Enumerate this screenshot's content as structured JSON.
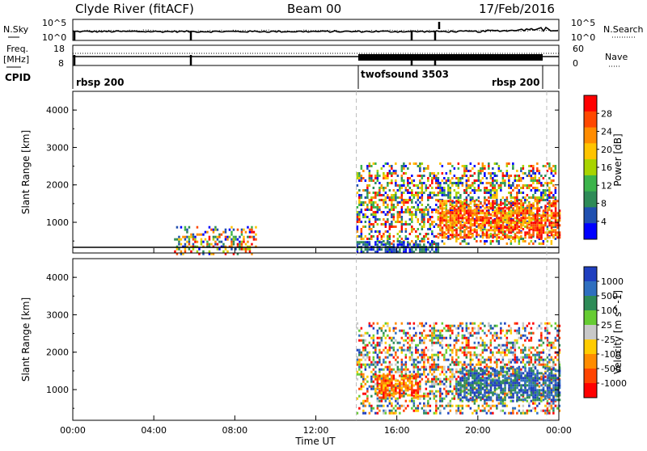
{
  "header": {
    "station": "Clyde River (fitACF)",
    "beam": "Beam 00",
    "date": "17/Feb/2016"
  },
  "left_labels": {
    "nsky": "N.Sky",
    "freq_a": "Freq.",
    "freq_b": "[MHz]",
    "cpid": "CPID"
  },
  "right_labels": {
    "nsearch": "N.Search",
    "nave": "Nave"
  },
  "ticks": {
    "sky_top": "10^5",
    "sky_bot": "10^0",
    "search_top": "10^5",
    "search_bot": "10^0",
    "freq_top": "18",
    "freq_bot": "8",
    "nave_top": "60",
    "nave_bot": "0"
  },
  "cpid_segments": {
    "seg1": "rbsp 200",
    "seg2": "twofsound 3503",
    "seg3": "rbsp 200"
  },
  "power_colorbar": {
    "label": "Power [dB]",
    "ticks": [
      "28",
      "24",
      "20",
      "16",
      "12",
      "8",
      "4"
    ],
    "colors": [
      "#ff0000",
      "#ff4800",
      "#ff8c00",
      "#ffc400",
      "#a8d400",
      "#3cb44b",
      "#2e8b57",
      "#2050b0",
      "#0000ff"
    ]
  },
  "velocity_colorbar": {
    "label": "Velocity [m s^-1]",
    "ticks": [
      "1000",
      "500",
      "100",
      "25",
      "-25",
      "-100",
      "-500",
      "-1000"
    ],
    "colors": [
      "#1f3fbf",
      "#2f6fbf",
      "#2e8b57",
      "#66cc33",
      "#c8c8c8",
      "#ffcc00",
      "#ff8c00",
      "#ff4400",
      "#ff0000"
    ]
  },
  "axes": {
    "ylabel": "Slant Range [km]",
    "xlabel": "Time UT",
    "yticks": [
      "4000",
      "3000",
      "2000",
      "1000"
    ],
    "xticks": [
      "00:00",
      "04:00",
      "08:00",
      "12:00",
      "16:00",
      "20:00",
      "00:00"
    ]
  },
  "chart_data": {
    "type": "heatmap",
    "x_range_hours": [
      0,
      24
    ],
    "y_range_km": [
      180,
      4500
    ],
    "cpid_change_hours": [
      14.0,
      23.4
    ],
    "power": {
      "units": "dB",
      "range": [
        0,
        32
      ],
      "blocks": [
        {
          "t0": 14.0,
          "t1": 23.8,
          "r0": 400,
          "r1": 2600,
          "level": "mixed"
        },
        {
          "t0": 18.0,
          "t1": 24.0,
          "r0": 600,
          "r1": 1600,
          "level": "high"
        },
        {
          "t0": 14.0,
          "t1": 18.0,
          "r0": 180,
          "r1": 500,
          "level": "low"
        },
        {
          "t0": 5.0,
          "t1": 9.0,
          "r0": 180,
          "r1": 900,
          "level": "mixed"
        }
      ]
    },
    "velocity": {
      "units": "m/s",
      "range": [
        -1000,
        1000
      ],
      "blocks": [
        {
          "t0": 14.0,
          "t1": 24.0,
          "r0": 400,
          "r1": 2800,
          "level": "mixed"
        },
        {
          "t0": 19.0,
          "t1": 24.0,
          "r0": 700,
          "r1": 1600,
          "level": "positive"
        },
        {
          "t0": 15.0,
          "t1": 17.0,
          "r0": 800,
          "r1": 1400,
          "level": "negative"
        }
      ]
    }
  }
}
